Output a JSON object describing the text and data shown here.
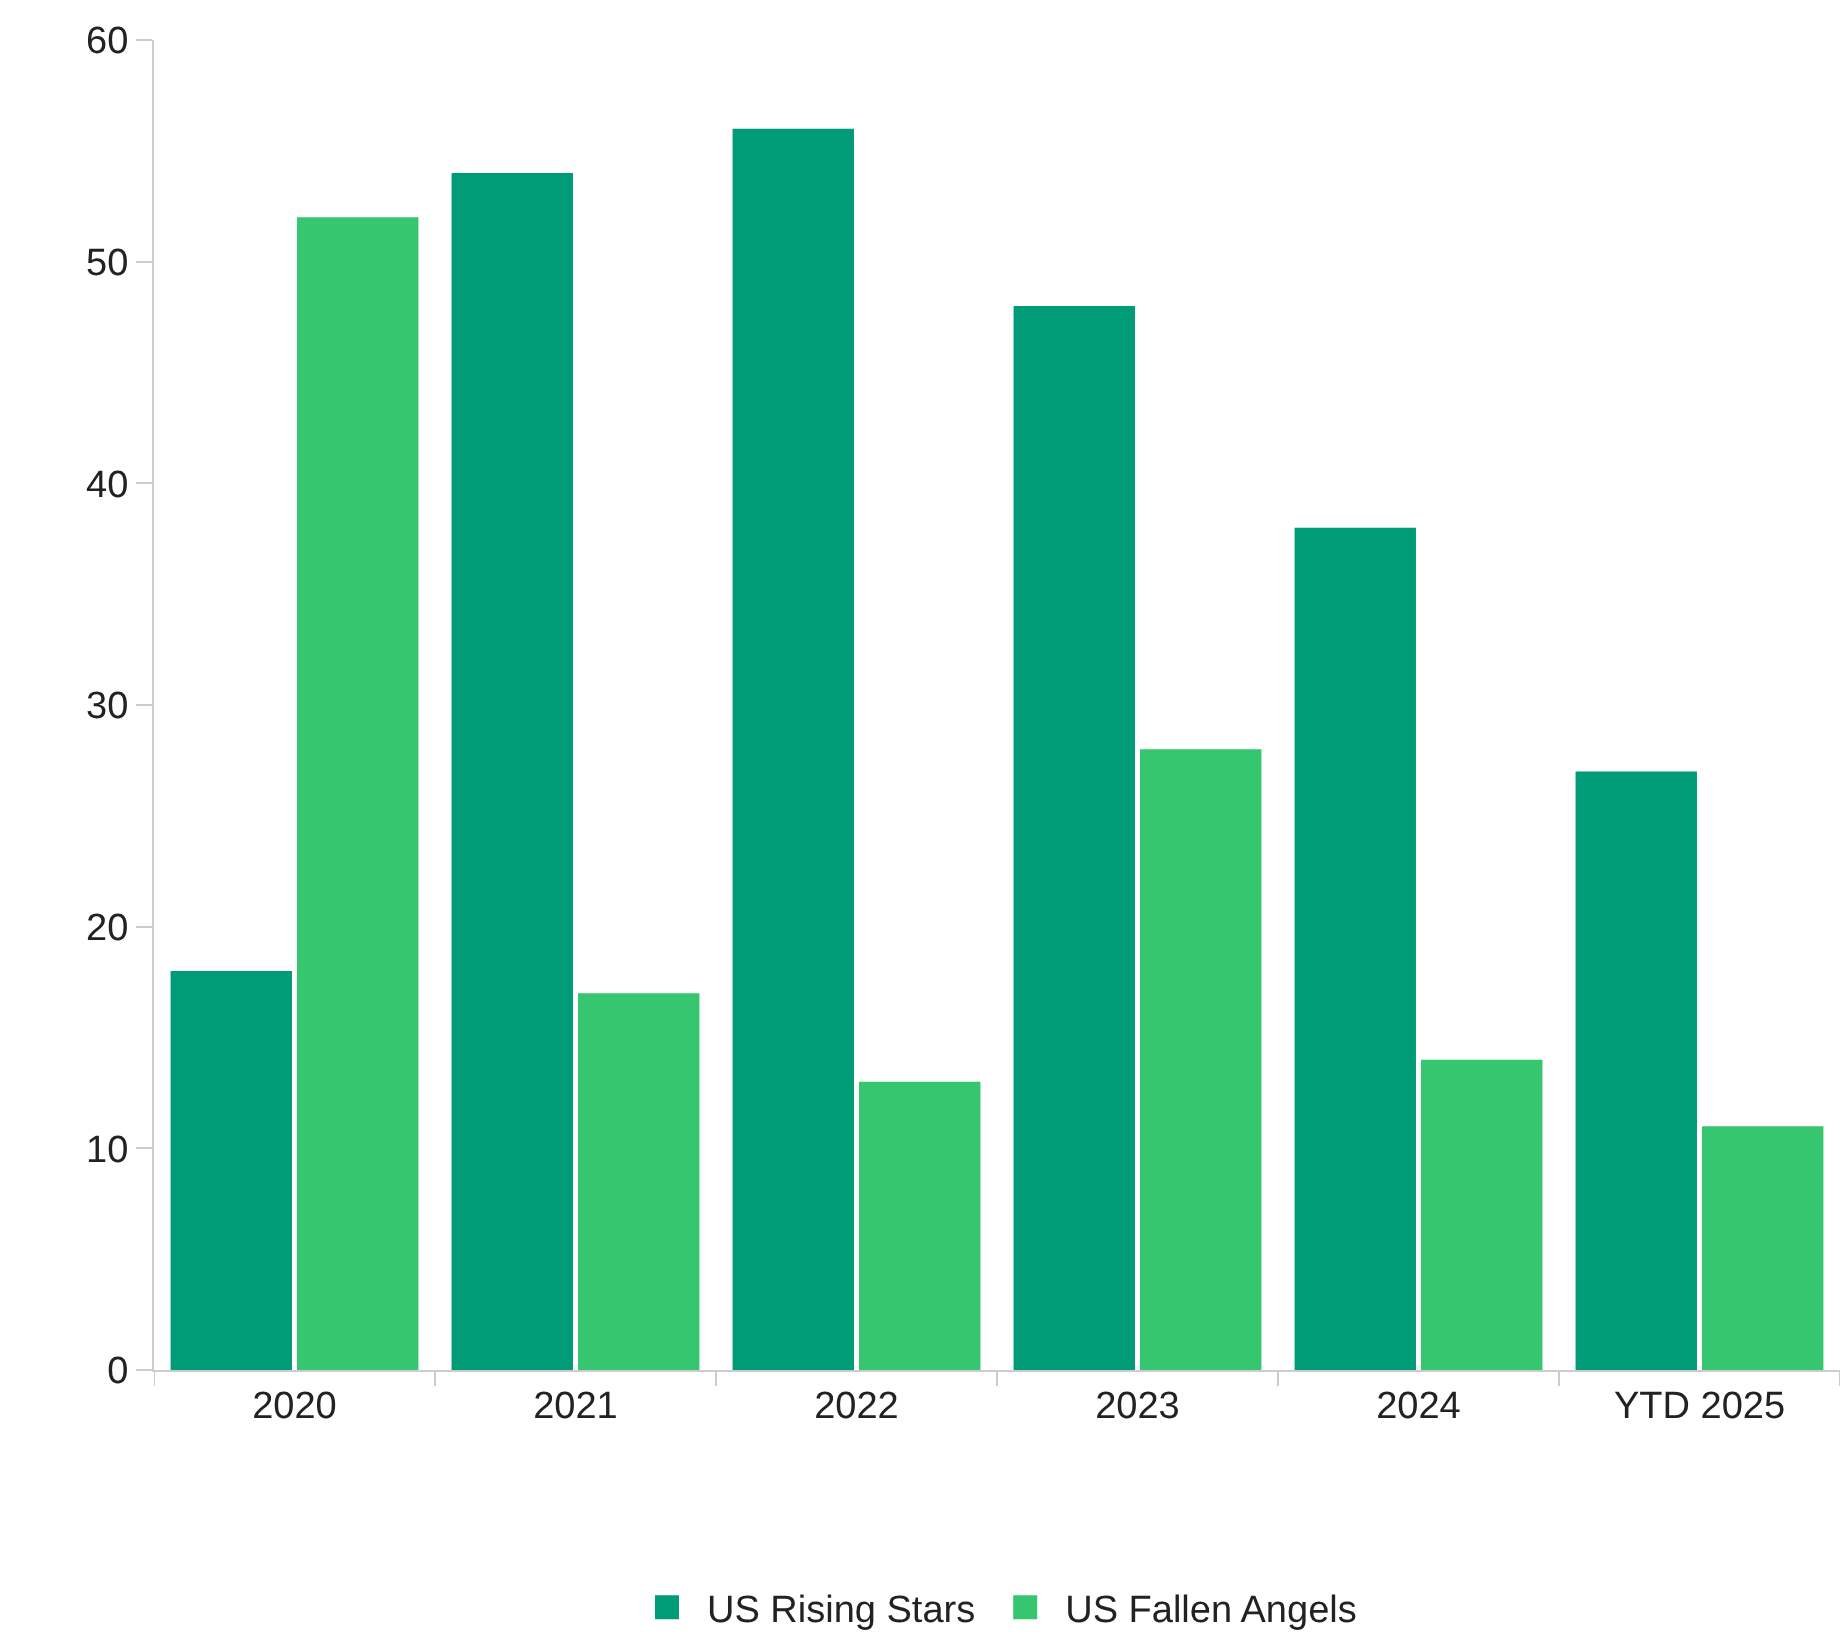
{
  "chart_data": {
    "type": "bar",
    "categories": [
      "2020",
      "2021",
      "2022",
      "2023",
      "2024",
      "YTD 2025"
    ],
    "series": [
      {
        "name": "US Rising Stars",
        "color": "#009b77",
        "values": [
          18,
          54,
          56,
          48,
          38,
          27
        ]
      },
      {
        "name": "US Fallen Angels",
        "color": "#35c66f",
        "values": [
          52,
          17,
          13,
          28,
          14,
          11
        ]
      }
    ],
    "ylim": [
      0,
      60
    ],
    "yticks": [
      0,
      10,
      20,
      30,
      40,
      50,
      60
    ],
    "legend": "bottom"
  }
}
